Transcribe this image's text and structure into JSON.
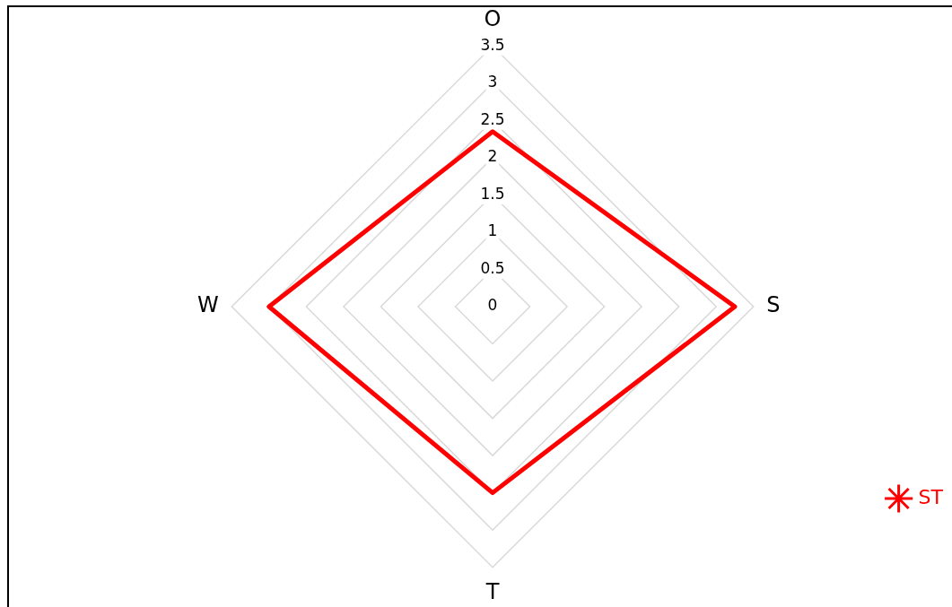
{
  "chart_data": {
    "type": "radar",
    "categories": [
      "O",
      "S",
      "T",
      "W"
    ],
    "series": [
      {
        "name": "ST",
        "color": "#ff0000",
        "values": [
          2.35,
          3.25,
          2.5,
          3.0
        ]
      }
    ],
    "ylim": [
      0,
      3.5
    ],
    "yticks": [
      0,
      0.5,
      1,
      1.5,
      2,
      2.5,
      3,
      3.5
    ],
    "grid": true,
    "legend": "bottom right"
  }
}
